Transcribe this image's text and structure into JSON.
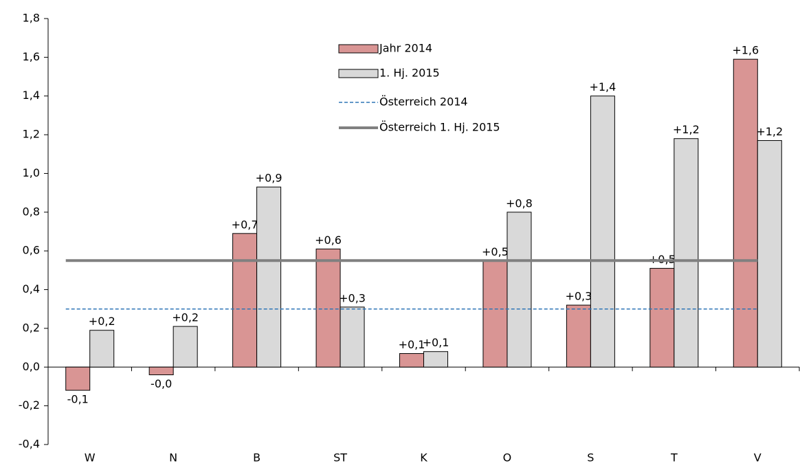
{
  "chart_data": {
    "type": "bar",
    "categories": [
      "W",
      "N",
      "B",
      "ST",
      "K",
      "O",
      "S",
      "T",
      "V"
    ],
    "series": [
      {
        "name": "Jahr 2014",
        "color": "#d99594",
        "values": [
          -0.12,
          -0.04,
          0.69,
          0.61,
          0.07,
          0.55,
          0.32,
          0.51,
          1.59
        ],
        "value_labels": [
          "-0,1",
          "-0,0",
          "+0,7",
          "+0,6",
          "+0,1",
          "+0,5",
          "+0,3",
          "+0,5",
          "+1,6"
        ]
      },
      {
        "name": "1. Hj. 2015",
        "color": "#d9d9d9",
        "values": [
          0.19,
          0.21,
          0.93,
          0.31,
          0.08,
          0.8,
          1.4,
          1.18,
          1.17
        ],
        "value_labels": [
          "+0,2",
          "+0,2",
          "+0,9",
          "+0,3",
          "+0,1",
          "+0,8",
          "+1,4",
          "+1,2",
          "+1,2"
        ]
      }
    ],
    "reference_lines": [
      {
        "name": "Österreich  2014",
        "value": 0.3,
        "color": "#2e75b6",
        "style": "dashed"
      },
      {
        "name": "Österreich  1. Hj. 2015",
        "value": 0.55,
        "color": "#808080",
        "style": "solid"
      }
    ],
    "ylim": [
      -0.4,
      1.8
    ],
    "yticks": [
      {
        "value": -0.4,
        "label": "-0,4"
      },
      {
        "value": -0.2,
        "label": "-0,2"
      },
      {
        "value": 0,
        "label": "0,0"
      },
      {
        "value": 0.2,
        "label": "0,2"
      },
      {
        "value": 0.4,
        "label": "0,4"
      },
      {
        "value": 0.6,
        "label": "0,6"
      },
      {
        "value": 0.8,
        "label": "0,8"
      },
      {
        "value": 1.0,
        "label": "1,0"
      },
      {
        "value": 1.2,
        "label": "1,2"
      },
      {
        "value": 1.4,
        "label": "1,4"
      },
      {
        "value": 1.6,
        "label": "1,6"
      },
      {
        "value": 1.8,
        "label": "1,8"
      }
    ],
    "grid": false,
    "legend": "top"
  }
}
